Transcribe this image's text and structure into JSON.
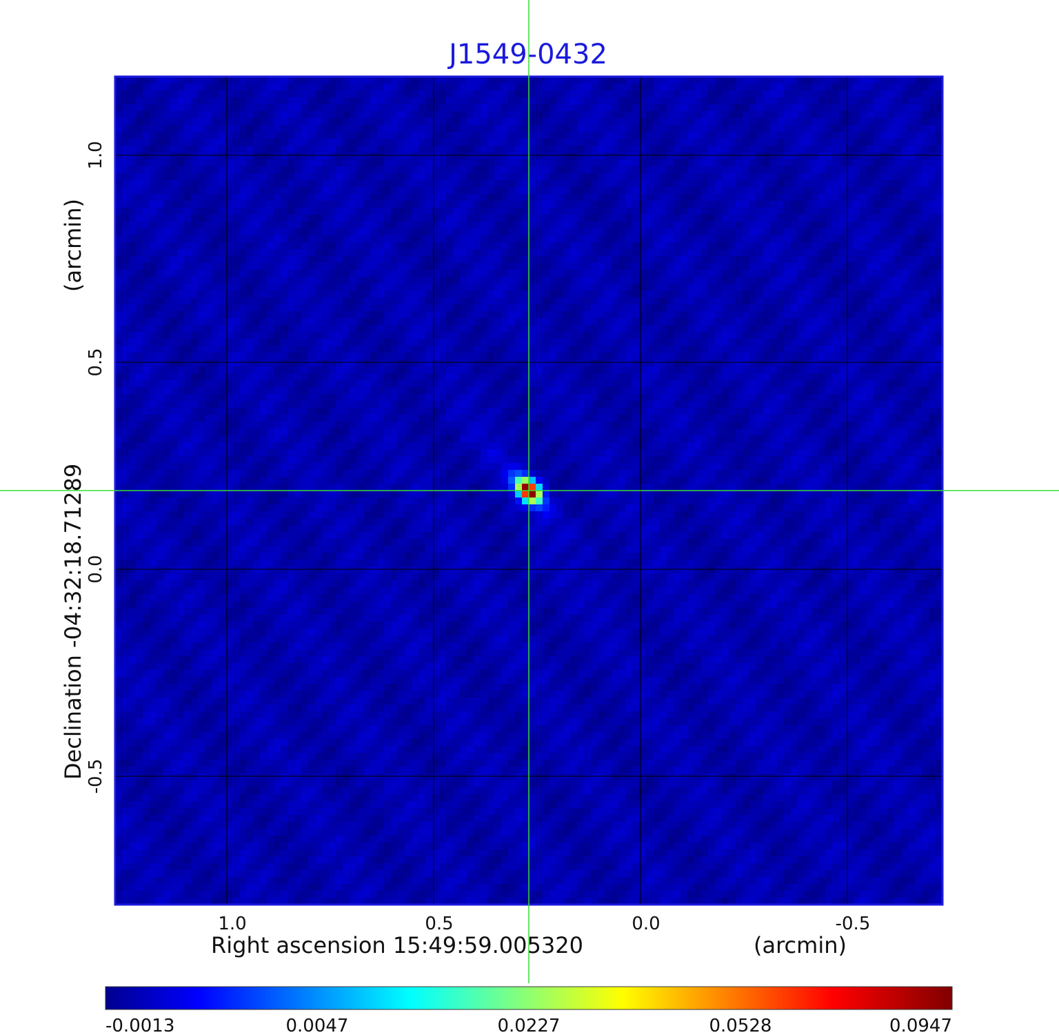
{
  "chart_data": {
    "type": "heatmap",
    "title": "J1549-0432",
    "colormap": "jet",
    "x_axis": {
      "label": "Right ascension  15:49:59.005320",
      "unit_label": "(arcmin)",
      "ticks": [
        1.0,
        0.5,
        0.0,
        -0.5
      ],
      "tick_labels": [
        "1.0",
        "0.5",
        "0.0",
        "-0.5"
      ],
      "range": [
        1.27,
        -0.73
      ]
    },
    "y_axis": {
      "label": "Declination  -04:32:18.71289",
      "unit_label": "(arcmin)",
      "ticks": [
        1.0,
        0.5,
        0.0,
        -0.5
      ],
      "tick_labels": [
        "1.0",
        "0.5",
        "0.0",
        "-0.5"
      ],
      "range": [
        -0.81,
        1.19
      ]
    },
    "grid": true,
    "colorbar": {
      "position": "bottom",
      "tick_values": [
        -0.0013,
        0.0047,
        0.0227,
        0.0528,
        0.0947
      ],
      "tick_labels": [
        "-0.0013",
        "0.0047",
        "0.0227",
        "0.0528",
        "0.0947"
      ],
      "min": -0.0013,
      "max": 0.0947
    },
    "source": {
      "x": 0.27,
      "y": 0.19,
      "peak": 0.0947
    },
    "crosshair": {
      "x": 0.27,
      "y": 0.19,
      "color": "#33dd33"
    },
    "background_level": 0.003
  },
  "colors": {
    "title": "#1a1adc",
    "frame": "#1a1adc",
    "grid": "#000000",
    "crosshair": "#33dd33"
  }
}
